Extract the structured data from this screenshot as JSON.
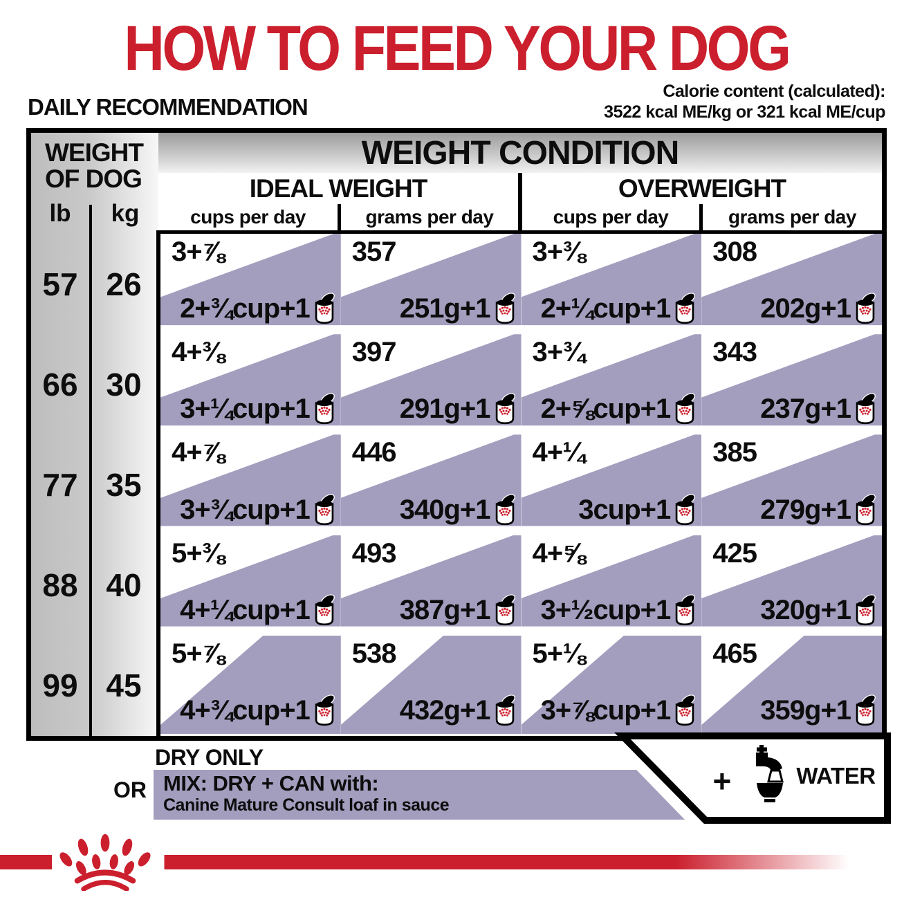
{
  "title": "HOW TO FEED YOUR DOG",
  "section_label": "DAILY RECOMMENDATION",
  "calorie": {
    "line1": "Calorie content (calculated):",
    "line2": "3522 kcal ME/kg or 321 kcal ME/cup"
  },
  "table": {
    "weight_header": {
      "line1": "WEIGHT",
      "line2": "OF DOG",
      "lb": "lb",
      "kg": "kg"
    },
    "condition_header": "WEIGHT CONDITION",
    "ideal_header": "IDEAL WEIGHT",
    "overweight_header": "OVERWEIGHT",
    "cups_label": "cups per day",
    "grams_label": "grams per day",
    "rows": [
      {
        "lb": "57",
        "kg": "26",
        "ideal_cups_dry": "3+⅞",
        "ideal_cups_mix": "2+¾cup+1",
        "ideal_grams_dry": "357",
        "ideal_grams_mix": "251g+1",
        "over_cups_dry": "3+⅜",
        "over_cups_mix": "2+¼cup+1",
        "over_grams_dry": "308",
        "over_grams_mix": "202g+1"
      },
      {
        "lb": "66",
        "kg": "30",
        "ideal_cups_dry": "4+⅜",
        "ideal_cups_mix": "3+¼cup+1",
        "ideal_grams_dry": "397",
        "ideal_grams_mix": "291g+1",
        "over_cups_dry": "3+¾",
        "over_cups_mix": "2+⅝cup+1",
        "over_grams_dry": "343",
        "over_grams_mix": "237g+1"
      },
      {
        "lb": "77",
        "kg": "35",
        "ideal_cups_dry": "4+⅞",
        "ideal_cups_mix": "3+¾cup+1",
        "ideal_grams_dry": "446",
        "ideal_grams_mix": "340g+1",
        "over_cups_dry": "4+¼",
        "over_cups_mix": "3cup+1",
        "over_grams_dry": "385",
        "over_grams_mix": "279g+1"
      },
      {
        "lb": "88",
        "kg": "40",
        "ideal_cups_dry": "5+⅜",
        "ideal_cups_mix": "4+¼cup+1",
        "ideal_grams_dry": "493",
        "ideal_grams_mix": "387g+1",
        "over_cups_dry": "4+⅝",
        "over_cups_mix": "3+½cup+1",
        "over_grams_dry": "425",
        "over_grams_mix": "320g+1"
      },
      {
        "lb": "99",
        "kg": "45",
        "ideal_cups_dry": "5+⅞",
        "ideal_cups_mix": "4+¾cup+1",
        "ideal_grams_dry": "538",
        "ideal_grams_mix": "432g+1",
        "over_cups_dry": "5+⅛",
        "over_cups_mix": "3+⅞cup+1",
        "over_grams_dry": "465",
        "over_grams_mix": "359g+1"
      }
    ]
  },
  "legend": {
    "dry_only": "DRY ONLY",
    "or": "OR",
    "mix_title": "MIX: DRY + CAN with:",
    "mix_subtitle": "Canine Mature Consult loaf in sauce",
    "plus": "+",
    "water": "WATER"
  },
  "colors": {
    "red": "#CB1F2D",
    "purple": "#A39DBE"
  }
}
